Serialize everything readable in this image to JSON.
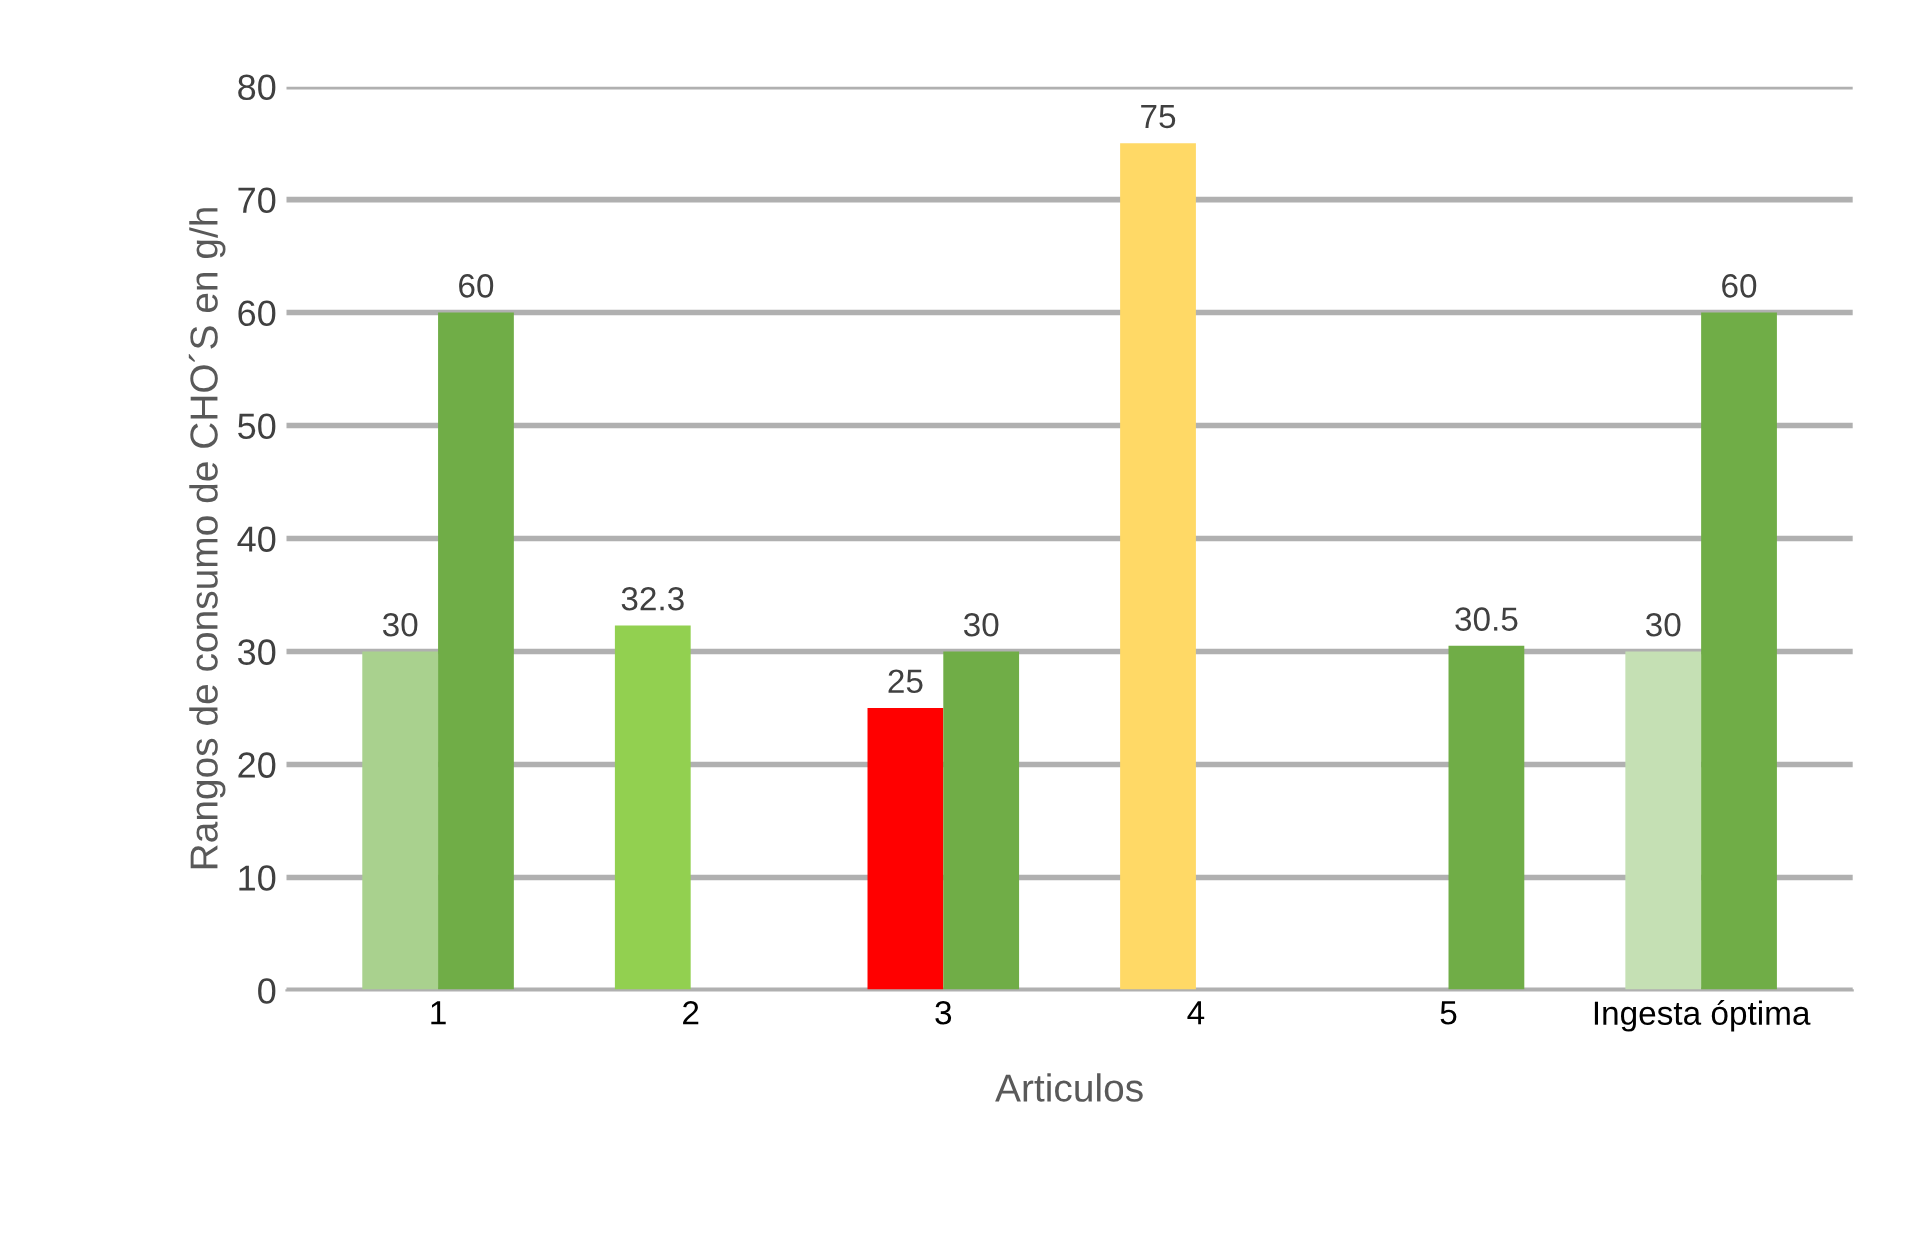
{
  "chart_data": {
    "type": "bar",
    "xlabel": "Articulos",
    "ylabel": "Rangos de consumo de CHO´S en g/h",
    "categories": [
      "1",
      "2",
      "3",
      "4",
      "5",
      "Ingesta óptima"
    ],
    "series": [
      {
        "values": [
          30,
          32.3,
          25,
          75,
          null,
          30
        ],
        "colors": [
          "#a9d18e",
          "#92d050",
          "#ff0000",
          "#ffd966",
          "#70ad47",
          "#c5e0b4"
        ]
      },
      {
        "values": [
          60,
          null,
          30,
          null,
          30.5,
          60
        ],
        "colors": [
          "#70ad47",
          "#70ad47",
          "#70ad47",
          "#70ad47",
          "#70ad47",
          "#70ad47"
        ]
      }
    ],
    "ylim": [
      0,
      80
    ],
    "yticks": [
      0,
      10,
      20,
      30,
      40,
      50,
      60,
      70,
      80
    ],
    "grid": "y",
    "data_labels": true
  }
}
